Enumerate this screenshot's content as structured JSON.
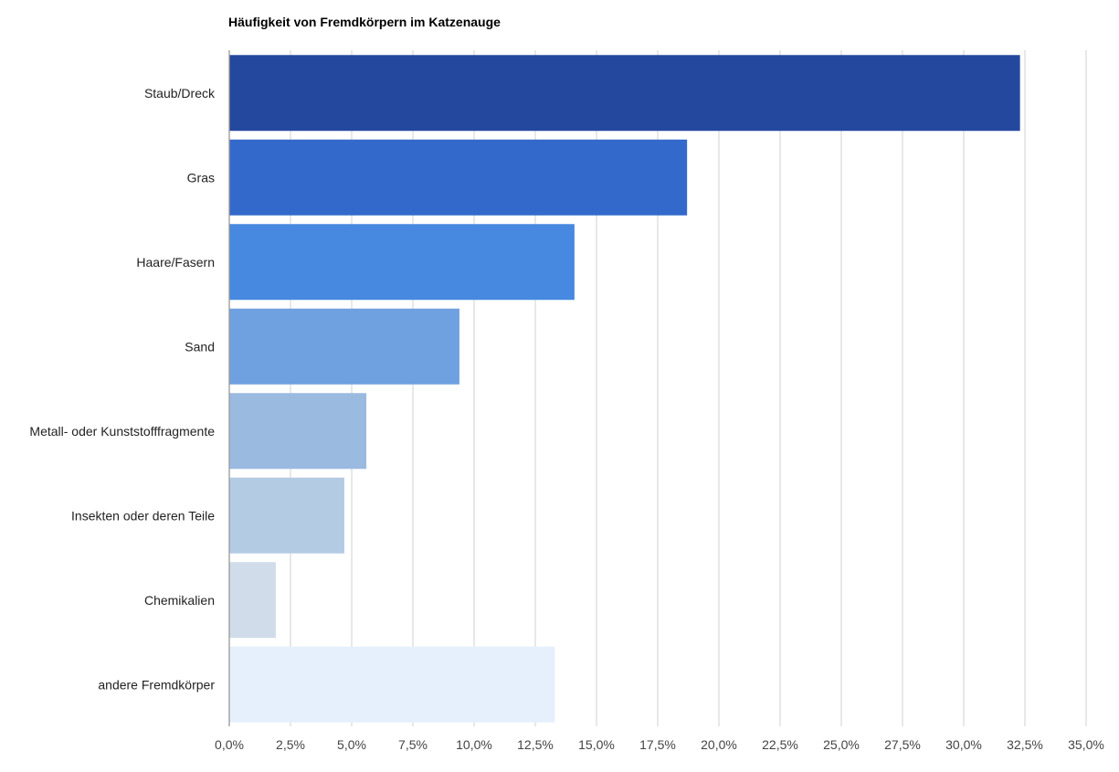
{
  "chart_data": {
    "type": "bar",
    "orientation": "horizontal",
    "title": "Häufigkeit von Fremdkörpern im Katzenauge",
    "categories": [
      "Staub/Dreck",
      "Gras",
      "Haare/Fasern",
      "Sand",
      "Metall- oder Kunststofffragmente",
      "Insekten oder deren Teile",
      "Chemikalien",
      "andere Fremdkörper"
    ],
    "values": [
      32.3,
      18.7,
      14.1,
      9.4,
      5.6,
      4.7,
      1.9,
      13.3
    ],
    "colors": [
      "#23489e",
      "#3469cc",
      "#4789e0",
      "#6fa1e0",
      "#9bbae0",
      "#b4cbe4",
      "#d0dce9",
      "#e6f0fc"
    ],
    "xlabel": "",
    "ylabel": "",
    "xlim": [
      0,
      35
    ],
    "ticks": [
      "0,0%",
      "2,5%",
      "5,0%",
      "7,5%",
      "10,0%",
      "12,5%",
      "15,0%",
      "17,5%",
      "20,0%",
      "22,5%",
      "25,0%",
      "27,5%",
      "30,0%",
      "32,5%",
      "35,0%"
    ],
    "grid": true,
    "legend": "none"
  }
}
